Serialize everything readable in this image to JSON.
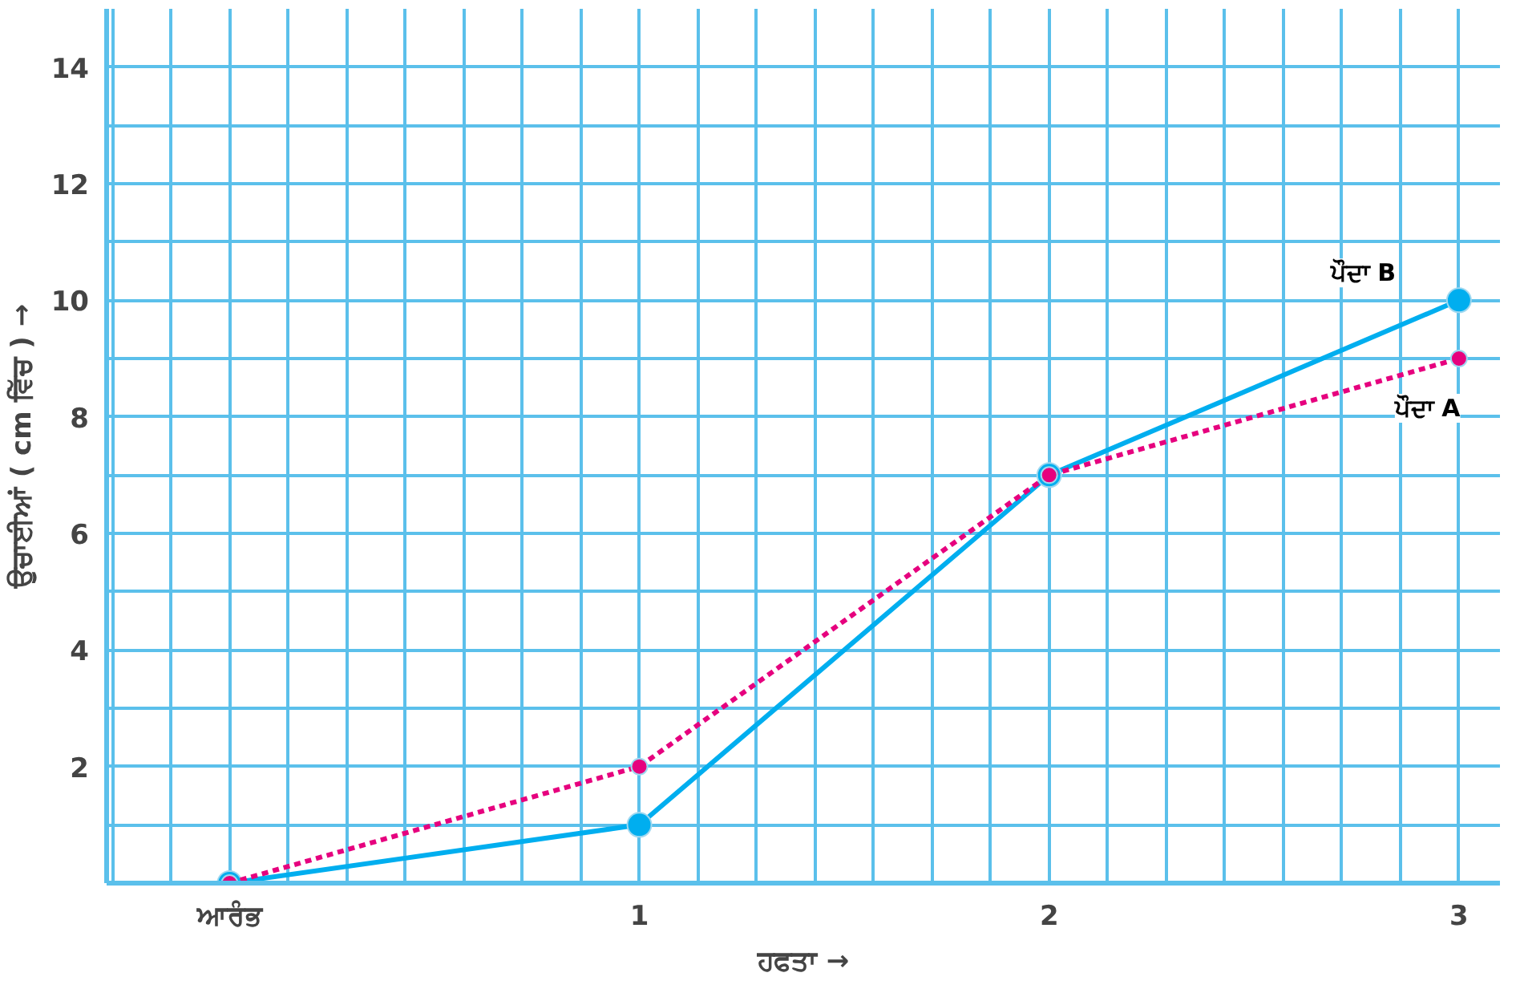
{
  "chart_data": {
    "type": "line",
    "xlabel": "ਹਫਤਾ →",
    "ylabel": "ਉਚਾਈਆਂ ( cm ਵਿੱਚ ) →",
    "categories": [
      "ਆਰੰਭ",
      "1",
      "2",
      "3"
    ],
    "series": [
      {
        "name": "ਪੌਦਾ B",
        "color": "#00aeef",
        "values": [
          0,
          1,
          7,
          10
        ],
        "line_style": "solid"
      },
      {
        "name": "ਪੌਦਾ A",
        "color": "#e6007e",
        "values": [
          0,
          2,
          7,
          9
        ],
        "line_style": "dashed"
      }
    ],
    "ylim": [
      0,
      15
    ],
    "yticks": [
      2,
      4,
      6,
      8,
      10,
      12,
      14
    ],
    "grid": true,
    "marker": "circle"
  }
}
